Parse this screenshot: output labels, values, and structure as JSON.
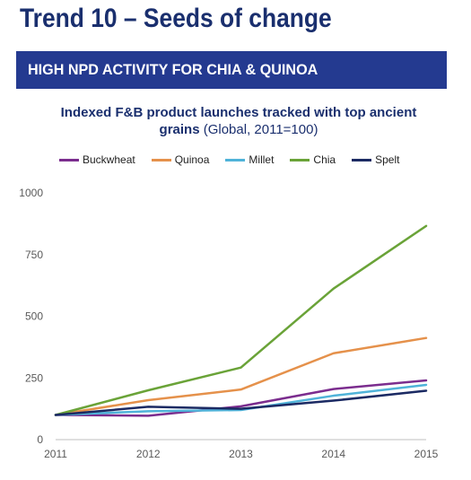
{
  "header": {
    "title": "Trend 10 – Seeds of change",
    "title_color": "#1a2f6e"
  },
  "banner": {
    "text": "HIGH NPD ACTIVITY FOR CHIA & QUINOA",
    "color": "#243a90"
  },
  "chart_data": {
    "type": "line",
    "title": "Indexed F&B product launches tracked with top ancient grains",
    "subtitle": "(Global, 2011=100)",
    "xlabel": "",
    "ylabel": "",
    "x": [
      "2011",
      "2012",
      "2013",
      "2014",
      "2015"
    ],
    "ylim": [
      0,
      1000
    ],
    "yticks": [
      "0",
      "250",
      "500",
      "750",
      "1000"
    ],
    "grid": false,
    "legend_position": "top",
    "series": [
      {
        "name": "Buckwheat",
        "color": "#7b2d8e",
        "values": [
          100,
          97,
          135,
          205,
          240
        ]
      },
      {
        "name": "Quinoa",
        "color": "#e5914b",
        "values": [
          100,
          160,
          203,
          350,
          412
        ]
      },
      {
        "name": "Millet",
        "color": "#4fb3d9",
        "values": [
          100,
          115,
          120,
          178,
          222
        ]
      },
      {
        "name": "Chia",
        "color": "#6aa338",
        "values": [
          100,
          200,
          292,
          612,
          866
        ]
      },
      {
        "name": "Spelt",
        "color": "#1b2a63",
        "values": [
          100,
          133,
          125,
          158,
          198
        ]
      }
    ]
  }
}
